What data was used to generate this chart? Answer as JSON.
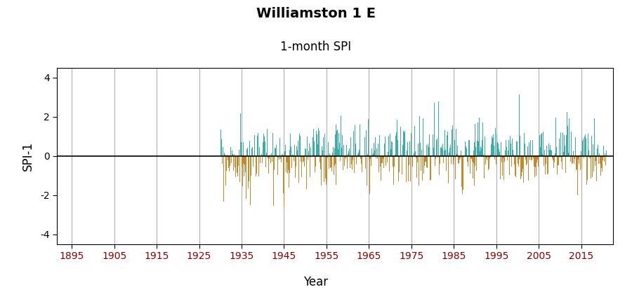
{
  "title": "Williamston 1 E",
  "subtitle": "1-month SPI",
  "ylabel": "SPI-1",
  "xlabel": "Year",
  "ylim": [
    -4.5,
    4.5
  ],
  "yticks": [
    -4,
    -2,
    0,
    2,
    4
  ],
  "xlim": [
    1891.5,
    2022.5
  ],
  "xticks": [
    1895,
    1905,
    1915,
    1925,
    1935,
    1945,
    1955,
    1965,
    1975,
    1985,
    1995,
    2005,
    2015
  ],
  "data_start_year": 1930,
  "data_end_year": 2020,
  "color_positive": "#3aada8",
  "color_negative": "#c8882a",
  "background_color": "#ffffff",
  "grid_color": "#b0b0b0",
  "title_fontsize": 14,
  "subtitle_fontsize": 12,
  "axis_label_fontsize": 12,
  "tick_fontsize": 10,
  "xtick_color": "#8b0000",
  "seed": 99
}
